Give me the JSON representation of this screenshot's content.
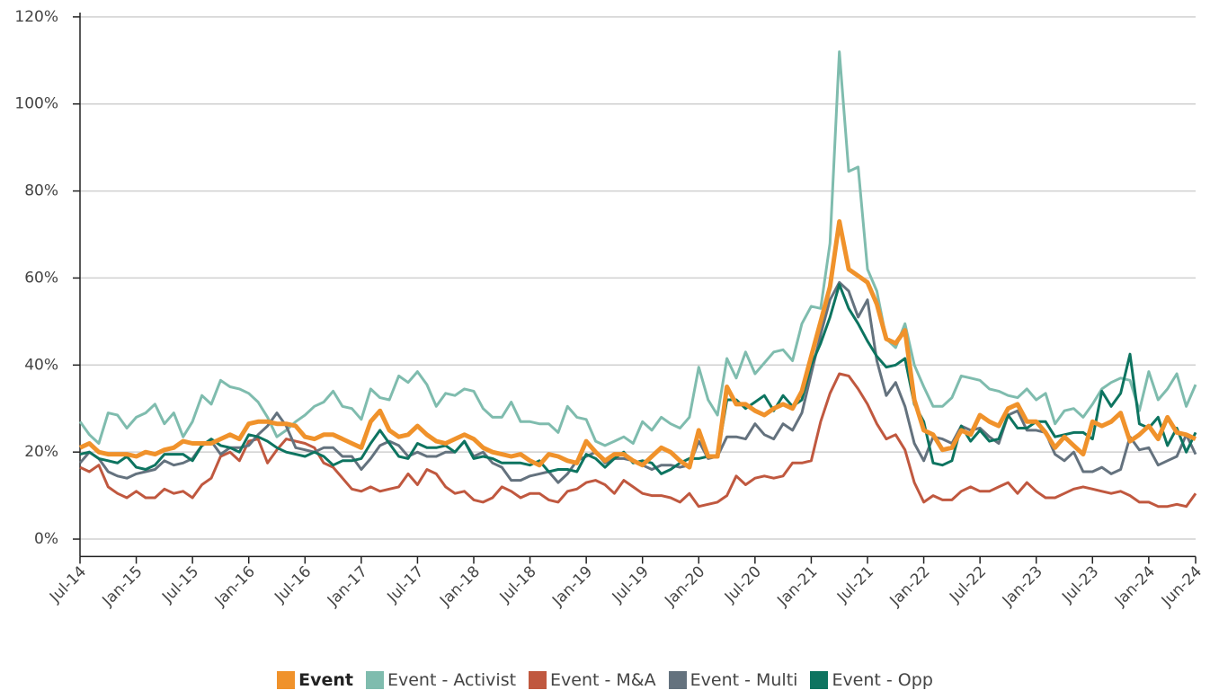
{
  "chart_data": {
    "type": "line",
    "categories": [
      "Jul-14",
      null,
      null,
      null,
      null,
      null,
      "Jan-15",
      null,
      null,
      null,
      null,
      null,
      "Jul-15",
      null,
      null,
      null,
      null,
      null,
      "Jan-16",
      null,
      null,
      null,
      null,
      null,
      "Jul-16",
      null,
      null,
      null,
      null,
      null,
      "Jan-17",
      null,
      null,
      null,
      null,
      null,
      "Jul-17",
      null,
      null,
      null,
      null,
      null,
      "Jan-18",
      null,
      null,
      null,
      null,
      null,
      "Jul-18",
      null,
      null,
      null,
      null,
      null,
      "Jan-19",
      null,
      null,
      null,
      null,
      null,
      "Jul-19",
      null,
      null,
      null,
      null,
      null,
      "Jan-20",
      null,
      null,
      null,
      null,
      null,
      "Jul-20",
      null,
      null,
      null,
      null,
      null,
      "Jan-21",
      null,
      null,
      null,
      null,
      null,
      "Jul-21",
      null,
      null,
      null,
      null,
      null,
      "Jan-22",
      null,
      null,
      null,
      null,
      null,
      "Jul-22",
      null,
      null,
      null,
      null,
      null,
      "Jan-23",
      null,
      null,
      null,
      null,
      null,
      "Jul-23",
      null,
      null,
      null,
      null,
      null,
      "Jan-24",
      null,
      null,
      null,
      null,
      "Jun-24"
    ],
    "series": [
      {
        "name": "Event",
        "color": "#f0922b",
        "values": [
          21,
          22,
          20,
          19.5,
          19.5,
          19.5,
          19,
          20,
          19.5,
          20.5,
          21,
          22.5,
          22,
          22,
          22,
          23,
          24,
          23,
          26.5,
          27,
          27,
          26.5,
          26.5,
          26,
          23.5,
          23,
          24,
          24,
          23,
          22,
          21,
          27,
          29.5,
          25,
          23.5,
          24,
          26,
          24,
          22.5,
          22,
          23,
          24,
          23,
          21,
          20,
          19.5,
          19,
          19.5,
          18,
          17,
          19.5,
          19,
          18,
          17.5,
          22.5,
          20,
          18,
          19.5,
          19.5,
          18,
          17,
          19,
          21,
          20,
          18,
          16.5,
          25,
          19,
          19,
          35,
          31,
          31,
          29.5,
          28.5,
          30,
          31,
          30,
          34,
          42,
          50,
          58,
          73,
          62,
          60.5,
          59,
          54,
          46,
          45,
          48,
          32,
          25,
          24,
          20.5,
          21,
          25,
          24,
          28.5,
          27,
          26,
          30,
          31,
          27,
          27,
          24.5,
          21,
          23.5,
          21.5,
          19.5,
          27,
          26,
          27,
          29,
          22.5,
          24,
          26,
          23,
          28,
          24.5,
          24,
          23
        ]
      },
      {
        "name": "Event - Activist",
        "color": "#7fbcae",
        "values": [
          27,
          24,
          22,
          29,
          28.5,
          25.5,
          28,
          29,
          31,
          26.5,
          29,
          23.5,
          27,
          33,
          31,
          36.5,
          35,
          34.5,
          33.5,
          31.5,
          28,
          23.5,
          25,
          27,
          28.5,
          30.5,
          31.5,
          34,
          30.5,
          30,
          27.5,
          34.5,
          32.5,
          32,
          37.5,
          36,
          38.5,
          35.5,
          30.5,
          33.5,
          33,
          34.5,
          34,
          30,
          28,
          28,
          31.5,
          27,
          27,
          26.5,
          26.5,
          24.5,
          30.5,
          28,
          27.5,
          22.5,
          21.5,
          22.5,
          23.5,
          22,
          27,
          25,
          28,
          26.5,
          25.5,
          28,
          39.5,
          32,
          28.5,
          41.5,
          37,
          43,
          38,
          40.5,
          43,
          43.5,
          41,
          49.5,
          53.5,
          53,
          68,
          112,
          84.5,
          85.5,
          62,
          57,
          46,
          44,
          49.5,
          40,
          35,
          30.5,
          30.5,
          32.5,
          37.5,
          37,
          36.5,
          34.5,
          34,
          33,
          32.5,
          34.5,
          32,
          33.5,
          26.5,
          29.5,
          30,
          28,
          31,
          34.5,
          36,
          37,
          36.5,
          29.5,
          38.5,
          32,
          34.5,
          38,
          30.5,
          35.5
        ]
      },
      {
        "name": "Event - M&A",
        "color": "#c0583f",
        "values": [
          16.5,
          15.5,
          17,
          12,
          10.5,
          9.5,
          11,
          9.5,
          9.5,
          11.5,
          10.5,
          11,
          9.5,
          12.5,
          14,
          19,
          20,
          18,
          22.5,
          23,
          17.5,
          20.5,
          23,
          22.5,
          22,
          21,
          17.5,
          16.5,
          14,
          11.5,
          11,
          12,
          11,
          11.5,
          12,
          15,
          12.5,
          16,
          15,
          12,
          10.5,
          11,
          9,
          8.5,
          9.5,
          12,
          11,
          9.5,
          10.5,
          10.5,
          9,
          8.5,
          11,
          11.5,
          13,
          13.5,
          12.5,
          10.5,
          13.5,
          12,
          10.5,
          10,
          10,
          9.5,
          8.5,
          10.5,
          7.5,
          8,
          8.5,
          10,
          14.5,
          12.5,
          14,
          14.5,
          14,
          14.5,
          17.5,
          17.5,
          18,
          27,
          33.5,
          38,
          37.5,
          34.5,
          31,
          26.5,
          23,
          24,
          20.5,
          13,
          8.5,
          10,
          9,
          9,
          11,
          12,
          11,
          11,
          12,
          13,
          10.5,
          13,
          11,
          9.5,
          9.5,
          10.5,
          11.5,
          12,
          11.5,
          11,
          10.5,
          11,
          10,
          8.5,
          8.5,
          7.5,
          7.5,
          8,
          7.5,
          10.5
        ]
      },
      {
        "name": "Event - Multi",
        "color": "#64727e",
        "values": [
          17.5,
          20,
          18.5,
          15.5,
          14.5,
          14,
          15,
          15.5,
          16,
          18,
          17,
          17.5,
          18.5,
          21.5,
          22.5,
          19.5,
          21,
          21,
          21.5,
          24,
          26,
          29,
          26,
          21,
          20.5,
          20,
          21,
          21,
          19,
          19,
          16,
          18.5,
          21.5,
          22.5,
          21.5,
          19,
          20,
          19,
          19,
          20,
          20,
          22.5,
          19,
          20,
          17.5,
          16.5,
          13.5,
          13.5,
          14.5,
          15,
          15.5,
          13,
          15,
          18,
          19,
          20,
          17.5,
          18.5,
          18.5,
          18,
          17,
          16,
          17,
          17,
          16.5,
          17,
          22.5,
          18.5,
          19,
          23.5,
          23.5,
          23,
          26.5,
          24,
          23,
          26.5,
          25,
          29,
          38,
          47,
          55,
          59,
          57,
          51,
          55,
          41,
          33,
          36,
          30.5,
          22,
          18,
          23.5,
          23,
          22,
          26,
          25,
          25.5,
          23.5,
          22,
          28.5,
          29.5,
          25,
          25,
          24.5,
          19.5,
          18,
          20,
          15.5,
          15.5,
          16.5,
          15,
          16,
          23.5,
          20.5,
          21,
          17,
          18,
          19,
          24,
          19.5
        ]
      },
      {
        "name": "Event - Opp",
        "color": "#0d7460",
        "values": [
          19.5,
          20,
          18.5,
          18,
          17.5,
          19,
          16.5,
          16,
          17,
          19.5,
          19.5,
          19.5,
          18,
          21.5,
          23,
          21.5,
          21,
          20,
          24,
          23.5,
          22.5,
          21,
          20,
          19.5,
          19,
          20,
          19,
          17,
          18,
          18,
          18.5,
          22,
          25,
          22,
          19,
          18.5,
          22,
          21,
          21,
          21.5,
          20,
          22.5,
          18.5,
          19,
          18.5,
          17.5,
          17.5,
          17.5,
          17,
          18,
          15.5,
          16,
          16,
          15.5,
          19.5,
          18.5,
          16.5,
          18.5,
          20,
          17.5,
          18,
          17.5,
          15,
          16,
          17.5,
          18.5,
          18.5,
          19,
          19,
          32,
          32,
          30,
          31.5,
          33,
          29.5,
          33,
          30.5,
          32,
          40,
          45,
          51,
          58.5,
          53,
          49.5,
          45.5,
          42,
          39.5,
          40,
          41.5,
          31,
          27,
          17.5,
          17,
          18,
          26,
          22.5,
          25,
          22.5,
          23,
          28.5,
          25.5,
          25.5,
          27,
          27,
          23.5,
          24,
          24.5,
          24.5,
          23,
          34,
          30.5,
          33.5,
          42.5,
          26.5,
          25.5,
          28,
          21.5,
          25.5,
          20,
          24.5
        ]
      }
    ],
    "ylim": [
      -4,
      121
    ],
    "yticks": [
      {
        "value": 0,
        "label": "0%"
      },
      {
        "value": 20,
        "label": "20%"
      },
      {
        "value": 40,
        "label": "40%"
      },
      {
        "value": 60,
        "label": "60%"
      },
      {
        "value": 80,
        "label": "80%"
      },
      {
        "value": 100,
        "label": "100%"
      },
      {
        "value": 120,
        "label": "120%"
      }
    ],
    "grid": true,
    "legend": "bottom"
  }
}
